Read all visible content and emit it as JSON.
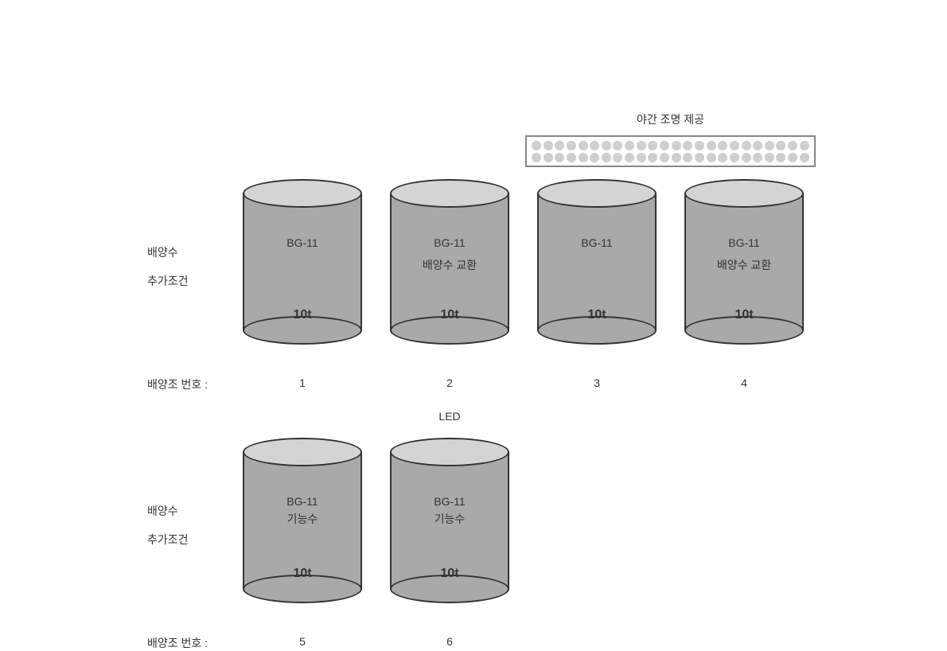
{
  "labels": {
    "night_light": "야간 조명 제공",
    "led": "LED",
    "culture_water": "배양수",
    "additional_condition": "추가조건",
    "tank_number": "배양조 번호 :"
  },
  "light_strip": {
    "dot_rows": 2,
    "dots_per_row": 24,
    "dot_color": "#cfcfcf",
    "border_color": "#888"
  },
  "cylinder_style": {
    "body_color": "#a9a9a9",
    "top_color": "#d4d4d4",
    "border_color": "#333333",
    "width": 150,
    "height": 190
  },
  "tanks": [
    {
      "id": 1,
      "row": 1,
      "pos_class": "tank1",
      "bg": "BG-11",
      "extra": "",
      "volume": "10t"
    },
    {
      "id": 2,
      "row": 1,
      "pos_class": "tank2",
      "bg": "BG-11",
      "extra": "배양수 교환",
      "volume": "10t"
    },
    {
      "id": 3,
      "row": 1,
      "pos_class": "tank3",
      "bg": "BG-11",
      "extra": "",
      "volume": "10t"
    },
    {
      "id": 4,
      "row": 1,
      "pos_class": "tank4",
      "bg": "BG-11",
      "extra": "배양수 교환",
      "volume": "10t"
    },
    {
      "id": 5,
      "row": 2,
      "pos_class": "tank5",
      "bg": "BG-11",
      "extra": "기능수",
      "volume": "10t"
    },
    {
      "id": 6,
      "row": 2,
      "pos_class": "tank6",
      "bg": "BG-11",
      "extra": "기능수",
      "volume": "10t"
    }
  ]
}
